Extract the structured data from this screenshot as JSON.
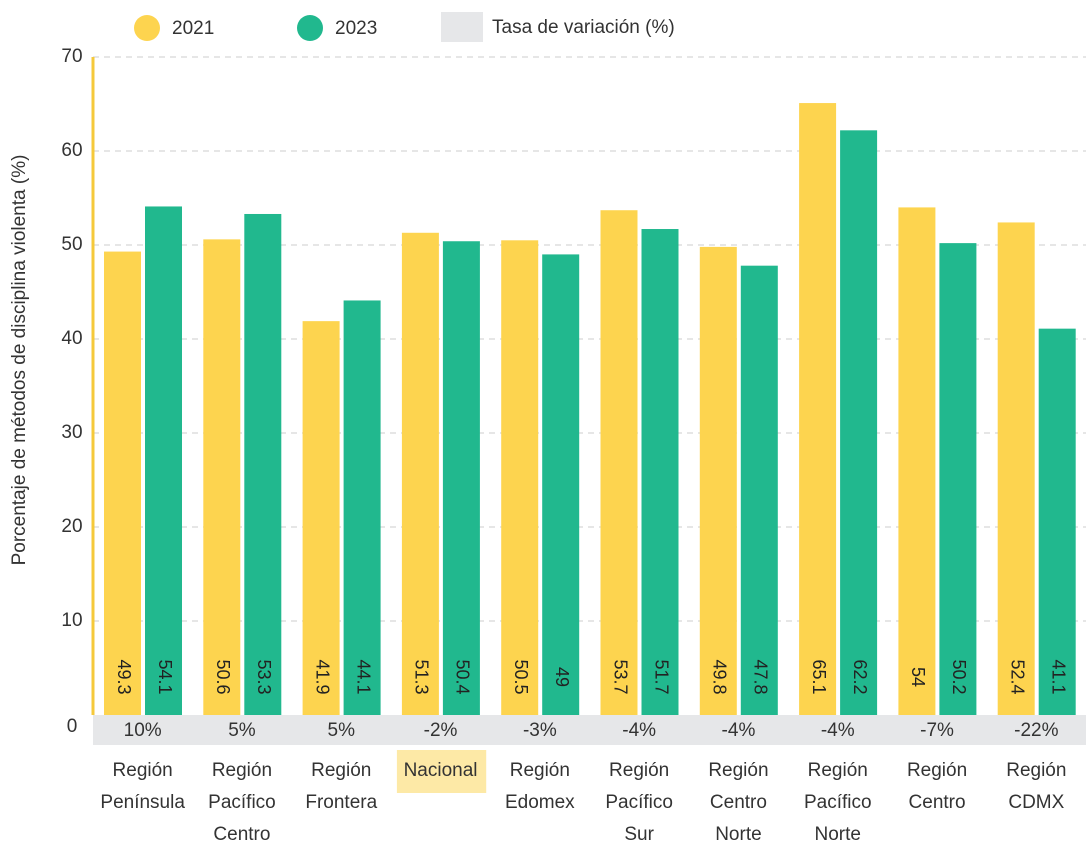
{
  "chart_data": {
    "type": "bar",
    "y_label": "Porcentaje de métodos de disciplina violenta (%)",
    "categories": [
      "Región Península",
      "Región Pacífico Centro",
      "Región Frontera",
      "Nacional",
      "Región Edomex",
      "Región Pacífico Sur",
      "Región Centro Norte",
      "Región Pacífico Norte",
      "Región Centro",
      "Región CDMX"
    ],
    "series": [
      {
        "name": "2021",
        "color": "#fdd44f",
        "values": [
          49.3,
          50.6,
          41.9,
          51.3,
          50.5,
          53.7,
          49.8,
          65.1,
          54,
          52.4
        ]
      },
      {
        "name": "2023",
        "color": "#21b88e",
        "values": [
          54.1,
          53.3,
          44.1,
          50.4,
          49,
          51.7,
          47.8,
          62.2,
          50.2,
          41.1
        ]
      }
    ],
    "variation": {
      "name": "Tasa de variación (%)",
      "color": "#e6e7e9",
      "values": [
        10,
        5,
        5,
        -2,
        -3,
        -4,
        -4,
        -4,
        -7,
        -22
      ],
      "value_labels": [
        "10%",
        "5%",
        "5%",
        "-2%",
        "-3%",
        "-4%",
        "-4%",
        "-4%",
        "-7%",
        "-22%"
      ]
    },
    "highlight_index": 3,
    "highlight_color": "#fde9a6",
    "ylim": [
      0,
      70
    ],
    "yticks": [
      0,
      10,
      20,
      30,
      40,
      50,
      60,
      70
    ],
    "grid": true,
    "axis_color": "#f5c93b"
  }
}
